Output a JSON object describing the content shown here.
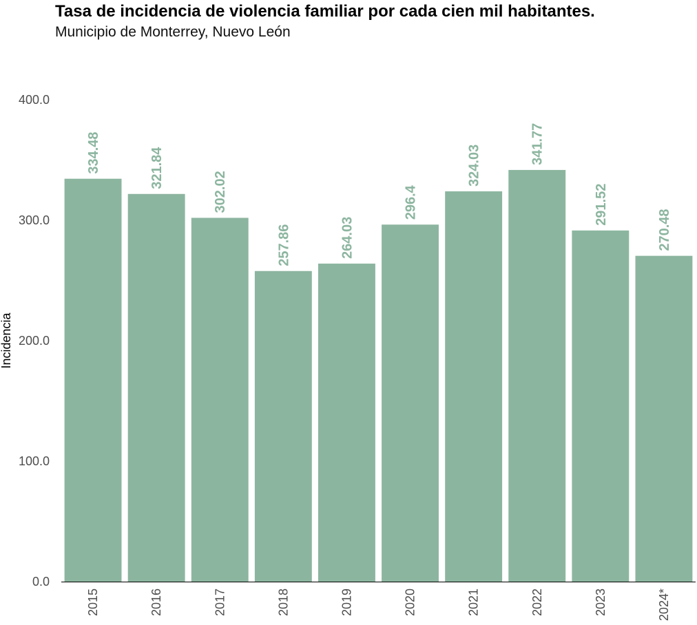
{
  "chart_data": {
    "type": "bar",
    "title": "Tasa de incidencia de violencia familiar por cada cien mil habitantes.",
    "subtitle": "Municipio de Monterrey, Nuevo León",
    "xlabel": "",
    "ylabel": "Incidencia",
    "categories": [
      "2015",
      "2016",
      "2017",
      "2018",
      "2019",
      "2020",
      "2021",
      "2022",
      "2023",
      "2024*"
    ],
    "values": [
      334.48,
      321.84,
      302.02,
      257.86,
      264.03,
      296.4,
      324.03,
      341.77,
      291.52,
      270.48
    ],
    "data_labels": [
      "334.48",
      "321.84",
      "302.02",
      "257.86",
      "264.03",
      "296.4",
      "324.03",
      "341.77",
      "291.52",
      "270.48"
    ],
    "ylim": [
      0,
      400
    ],
    "yticks": [
      0,
      100,
      200,
      300,
      400
    ],
    "ytick_labels": [
      "0.0",
      "100.0",
      "200.0",
      "300.0",
      "400.0"
    ],
    "grid": false,
    "legend": "none",
    "bar_color": "#8cb59f",
    "label_color": "#8cb59f"
  }
}
